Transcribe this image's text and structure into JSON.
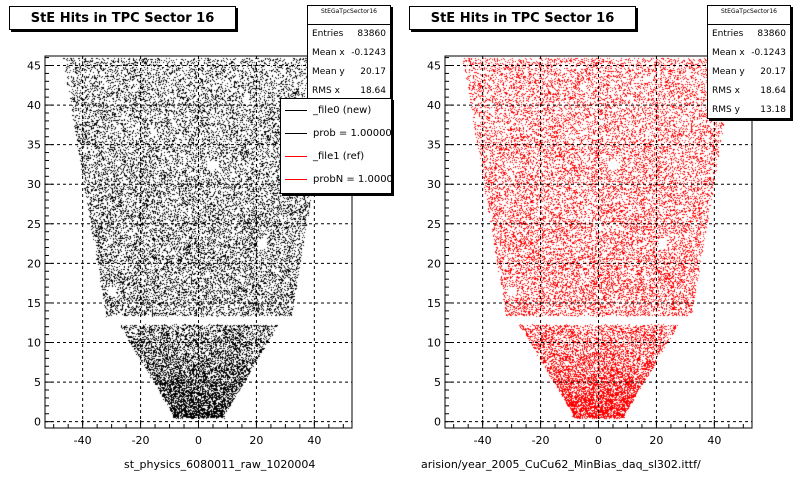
{
  "colors": {
    "new": "#000000",
    "ref": "#ff0000",
    "grid": "#000000",
    "background": "#ffffff"
  },
  "captions": {
    "left": "st_physics_6080011_raw_1020004",
    "right": "arision/year_2005_CuCu62_MinBias_daq_sl302.ittf/"
  },
  "legend": {
    "entries": [
      {
        "label": "_file0 (new)",
        "color": "#000000"
      },
      {
        "label": "prob = 1.000000",
        "color": "#000000"
      },
      {
        "label": "_file1 (ref)",
        "color": "#ff0000"
      },
      {
        "label": "probN = 1.000000",
        "color": "#ff0000"
      }
    ]
  },
  "chart_data": [
    {
      "type": "scatter",
      "title": "StE Hits in TPC Sector 16",
      "color": "#000000",
      "xlim": [
        -53,
        53
      ],
      "ylim": [
        -0.8,
        46.2
      ],
      "xticks": [
        -40,
        -20,
        0,
        20,
        40
      ],
      "yticks": [
        0,
        5,
        10,
        15,
        20,
        25,
        30,
        35,
        40,
        45
      ],
      "grid": true,
      "stats": {
        "name": "StEGaTpcSector16",
        "rows": [
          {
            "label": "Entries",
            "value": "83860"
          },
          {
            "label": "Mean x",
            "value": "-0.1243"
          },
          {
            "label": "Mean y",
            "value": "20.17"
          },
          {
            "label": "RMS x",
            "value": "18.64"
          }
        ]
      },
      "distribution": {
        "entries": 83860,
        "rows_y_range": [
          0.5,
          46
        ],
        "outer_halfwidth_top": 47,
        "outer_halfwidth_at_y13": 32,
        "inner_halfwidth_at_y12": 27,
        "inner_halfwidth_at_y1": 9,
        "gap_y_range": [
          12.3,
          13.4
        ]
      }
    },
    {
      "type": "scatter",
      "title": "StE Hits in TPC Sector 16",
      "color": "#ff0000",
      "xlim": [
        -53,
        53
      ],
      "ylim": [
        -0.8,
        46.2
      ],
      "xticks": [
        -40,
        -20,
        0,
        20,
        40
      ],
      "yticks": [
        0,
        5,
        10,
        15,
        20,
        25,
        30,
        35,
        40,
        45
      ],
      "grid": true,
      "stats": {
        "name": "StEGaTpcSector16",
        "rows": [
          {
            "label": "Entries",
            "value": "83860"
          },
          {
            "label": "Mean x",
            "value": "-0.1243"
          },
          {
            "label": "Mean y",
            "value": "20.17"
          },
          {
            "label": "RMS x",
            "value": "18.64"
          },
          {
            "label": "RMS y",
            "value": "13.18"
          }
        ]
      },
      "distribution": {
        "entries": 83860,
        "rows_y_range": [
          0.5,
          46
        ],
        "outer_halfwidth_top": 47,
        "outer_halfwidth_at_y13": 32,
        "inner_halfwidth_at_y12": 27,
        "inner_halfwidth_at_y1": 9,
        "gap_y_range": [
          12.3,
          13.4
        ]
      }
    }
  ]
}
